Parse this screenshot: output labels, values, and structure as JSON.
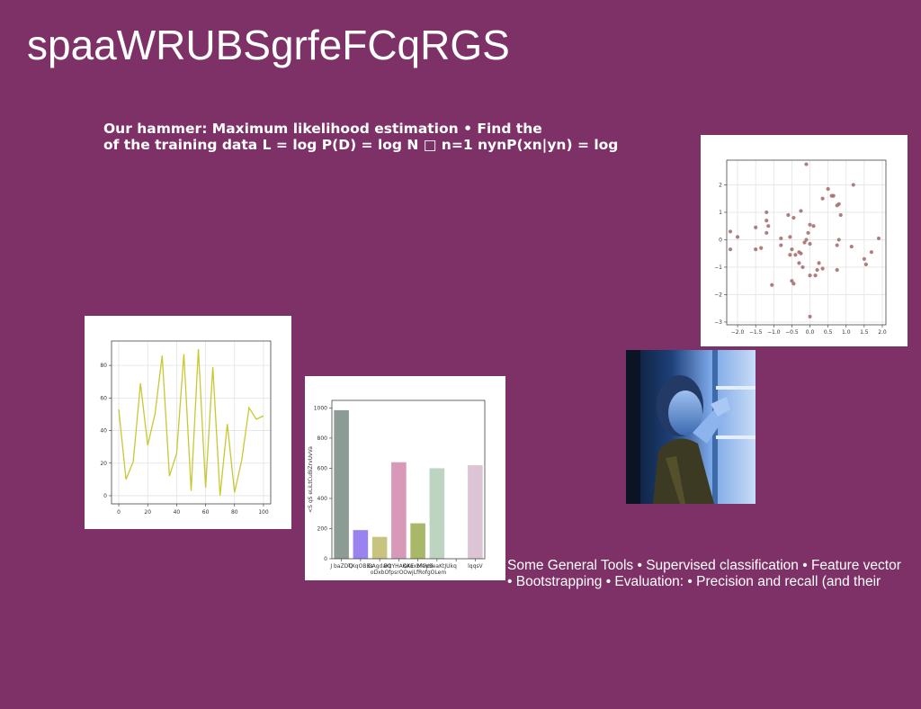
{
  "slide": {
    "title": "spaaWRUBSgrfeFCqRGS",
    "text_block_1": {
      "line1": "Our hammer: Maximum likelihood estimation • Find the",
      "line2": "of the training data L = log P(D) = log N □ n=1 nynP(xn|yn) = log"
    },
    "text_block_2": {
      "line1": "Some General Tools • Supervised classification • Feature vector",
      "line2": "• Bootstrapping • Evaluation: • Precision and recall (and their"
    },
    "background_color": "#7d3166"
  },
  "chart_data": [
    {
      "type": "scatter",
      "title": "",
      "xlabel": "",
      "ylabel": "",
      "xlim": [
        -2.3,
        2.1
      ],
      "ylim": [
        -3.1,
        2.9
      ],
      "xticks": [
        "−2.0",
        "−1.5",
        "−1.0",
        "−0.5",
        "0.0",
        "0.5",
        "1.0",
        "1.5",
        "2.0"
      ],
      "yticks": [
        "−3",
        "−2",
        "−1",
        "0",
        "1",
        "2"
      ],
      "grid": true,
      "color": "#a87070",
      "points": [
        [
          -0.1,
          2.75
        ],
        [
          1.2,
          2.0
        ],
        [
          0.5,
          1.85
        ],
        [
          0.6,
          1.6
        ],
        [
          0.65,
          1.6
        ],
        [
          0.35,
          1.5
        ],
        [
          0.75,
          1.25
        ],
        [
          0.8,
          1.3
        ],
        [
          -1.2,
          1.0
        ],
        [
          -0.6,
          0.9
        ],
        [
          -0.45,
          0.8
        ],
        [
          0.85,
          0.9
        ],
        [
          -1.2,
          0.7
        ],
        [
          -1.15,
          0.5
        ],
        [
          0.0,
          0.55
        ],
        [
          0.1,
          0.5
        ],
        [
          -0.25,
          1.05
        ],
        [
          -1.5,
          0.45
        ],
        [
          -2.2,
          0.3
        ],
        [
          -1.2,
          0.25
        ],
        [
          -0.05,
          0.25
        ],
        [
          -0.55,
          0.1
        ],
        [
          -0.8,
          0.05
        ],
        [
          0.8,
          0.0
        ],
        [
          -2.0,
          0.1
        ],
        [
          -0.1,
          0.0
        ],
        [
          -0.15,
          -0.1
        ],
        [
          0.0,
          -0.15
        ],
        [
          -0.8,
          -0.2
        ],
        [
          1.9,
          0.05
        ],
        [
          0.75,
          -0.2
        ],
        [
          1.15,
          -0.25
        ],
        [
          -1.35,
          -0.3
        ],
        [
          -1.5,
          -0.35
        ],
        [
          -2.2,
          -0.35
        ],
        [
          -0.5,
          -0.35
        ],
        [
          -0.3,
          -0.45
        ],
        [
          -0.25,
          -0.5
        ],
        [
          -0.4,
          -0.55
        ],
        [
          1.7,
          -0.45
        ],
        [
          -0.55,
          -0.55
        ],
        [
          1.5,
          -0.7
        ],
        [
          0.25,
          -0.85
        ],
        [
          -0.3,
          -0.85
        ],
        [
          1.55,
          -0.9
        ],
        [
          -0.2,
          -1.0
        ],
        [
          0.2,
          -1.1
        ],
        [
          0.35,
          -1.05
        ],
        [
          0.75,
          -1.1
        ],
        [
          0.0,
          -1.3
        ],
        [
          0.15,
          -1.3
        ],
        [
          -0.5,
          -1.5
        ],
        [
          -0.45,
          -1.6
        ],
        [
          -1.05,
          -1.65
        ],
        [
          0.0,
          -2.8
        ]
      ]
    },
    {
      "type": "line",
      "title": "",
      "xlabel": "",
      "ylabel": "",
      "xlim": [
        -5,
        105
      ],
      "ylim": [
        -5,
        95
      ],
      "xticks": [
        "0",
        "20",
        "40",
        "60",
        "80",
        "100"
      ],
      "yticks": [
        "0",
        "20",
        "40",
        "60",
        "80"
      ],
      "grid": true,
      "color": "#c8c832",
      "x": [
        0,
        5,
        10,
        15,
        20,
        25,
        30,
        35,
        40,
        45,
        50,
        55,
        60,
        65,
        70,
        75,
        80,
        85,
        90,
        95,
        100
      ],
      "y": [
        53,
        10,
        21,
        69,
        31,
        50,
        86,
        12,
        26,
        87,
        3,
        90,
        5,
        79,
        0,
        44,
        2,
        22,
        54,
        47,
        49
      ]
    },
    {
      "type": "bar",
      "title": "",
      "xlabel": "",
      "ylabel": "<S qS eLiLtCuBiZrvUvVa",
      "ylim": [
        0,
        1050
      ],
      "yticks": [
        "0",
        "200",
        "400",
        "600",
        "800",
        "1000"
      ],
      "categories": [
        "J baZDQ",
        "TXqOBBs",
        "GAgdaKt",
        "BQYHAQKE",
        "KAuxbfGpd",
        "MeVSeaKtJUkq",
        "",
        "lqqsV"
      ],
      "second_line_label": "oDxbOfpsrOOwjLfRofgOLem",
      "values": [
        985,
        190,
        145,
        640,
        235,
        600,
        0,
        620
      ],
      "colors": [
        "#8c9c94",
        "#9a82f0",
        "#c8c480",
        "#d898b8",
        "#a8b868",
        "#bcd4c0",
        "#ffffff",
        "#dcc4d4"
      ]
    }
  ]
}
